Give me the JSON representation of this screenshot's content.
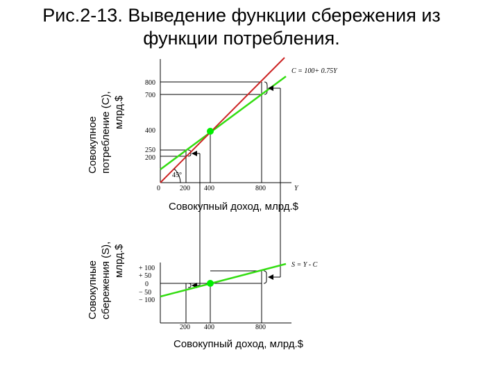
{
  "title": {
    "line1": "Рис.2-13. Выведение функции сбережения из",
    "line2": "функции потребления."
  },
  "colors": {
    "consumption_line": "#33dd11",
    "bisector_45": "#cc2222",
    "saving_line": "#33dd11",
    "point": "#00ee00"
  },
  "top_chart": {
    "ylabel_line1": "Совокупное",
    "ylabel_line2": "потребление (С),",
    "ylabel_line3": "млрд.$",
    "xlabel": "Совокупный доход, млрд.$",
    "x_axis_symbol": "Y",
    "equation": "C = 100+ 0.75Y",
    "angle_label": "45°",
    "origin_label": "0",
    "x_ticks": [
      "200",
      "400",
      "800"
    ],
    "y_ticks": [
      "800",
      "700",
      "400",
      "250",
      "200"
    ]
  },
  "bottom_chart": {
    "ylabel_line1": "Совокупные",
    "ylabel_line2": "сбережения (S),",
    "ylabel_line3": "млрд.$",
    "xlabel": "Совокупный доход, млрд.$",
    "equation": "S = Y - C",
    "x_ticks": [
      "200",
      "400",
      "800"
    ],
    "y_ticks": [
      "+ 100",
      "+ 50",
      "0",
      "− 50",
      "− 100"
    ]
  },
  "chart_data": [
    {
      "type": "line",
      "series": [
        {
          "name": "C = 100+ 0.75Y",
          "x": [
            0,
            960
          ],
          "y": [
            100,
            820
          ]
        },
        {
          "name": "45°",
          "x": [
            0,
            960
          ],
          "y": [
            0,
            960
          ]
        }
      ],
      "highlighted_point": {
        "x": 400,
        "y": 400
      },
      "guides": [
        {
          "x": 200,
          "y_low": 250,
          "y_high": 200
        },
        {
          "x": 800,
          "y_low": 700,
          "y_high": 800
        }
      ],
      "xlabel": "Совокупный доход, млрд.$",
      "ylabel": "Совокупное потребление (С), млрд.$"
    },
    {
      "type": "line",
      "series": [
        {
          "name": "S = Y - C",
          "x": [
            0,
            960
          ],
          "y": [
            -100,
            140
          ]
        }
      ],
      "highlighted_point": {
        "x": 400,
        "y": 0
      },
      "guides": [
        {
          "x": 200,
          "y": -50
        },
        {
          "x": 800,
          "y": 100
        }
      ],
      "xlabel": "Совокупный доход, млрд.$",
      "ylabel": "Совокупные сбережения (S), млрд.$"
    }
  ]
}
